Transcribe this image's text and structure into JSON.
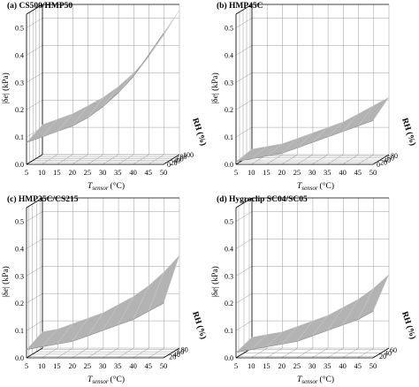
{
  "chart_data": [
    {
      "type": "surface",
      "title": "(a) CS500/HMP50",
      "xlabel": "T",
      "xlabel_sub": "sensor",
      "xlabel_unit": "(°C)",
      "ylabel": "RH (%)",
      "zlabel_prefix": "|δ",
      "zlabel_var": "e",
      "zlabel_suffix": "| (kPa)",
      "x_ticks": [
        "5",
        "10",
        "15",
        "20",
        "25",
        "30",
        "35",
        "40",
        "45",
        "50"
      ],
      "rh_ticks": [
        "0",
        "20",
        "40",
        "60",
        "80",
        "100"
      ],
      "z_ticks": [
        "0.0",
        "0.1",
        "0.2",
        "0.3",
        "0.4",
        "0.5"
      ],
      "xlim": [
        5,
        50
      ],
      "rhlim": [
        0,
        100
      ],
      "zlim": [
        0,
        0.55
      ],
      "surface": {
        "T": [
          5,
          10,
          15,
          20,
          25,
          30,
          35,
          40,
          45,
          50
        ],
        "RH": [
          0,
          100
        ],
        "z": [
          [
            0.08,
            0.1,
            0.12,
            0.14,
            0.17,
            0.21,
            0.26,
            0.32,
            0.4,
            0.48
          ],
          [
            0.11,
            0.13,
            0.15,
            0.18,
            0.21,
            0.25,
            0.3,
            0.36,
            0.44,
            0.53
          ]
        ]
      }
    },
    {
      "type": "surface",
      "title": "(b) HMP45C",
      "xlabel": "T",
      "xlabel_sub": "sensor",
      "xlabel_unit": "(°C)",
      "ylabel": "RH (%)",
      "zlabel_prefix": "|δ",
      "zlabel_var": "e",
      "zlabel_suffix": "| (kPa)",
      "x_ticks": [
        "5",
        "10",
        "15",
        "20",
        "25",
        "30",
        "35",
        "40",
        "45",
        "50"
      ],
      "rh_ticks": [
        "0",
        "20",
        "40",
        "60",
        "80"
      ],
      "z_ticks": [
        "0.0",
        "0.1",
        "0.2",
        "0.3",
        "0.4",
        "0.5"
      ],
      "xlim": [
        5,
        50
      ],
      "rhlim": [
        0,
        90
      ],
      "zlim": [
        0,
        0.55
      ],
      "surface": {
        "T": [
          5,
          10,
          15,
          20,
          25,
          30,
          35,
          40,
          45,
          50
        ],
        "RH": [
          0,
          90
        ],
        "z": [
          [
            0.01,
            0.02,
            0.03,
            0.04,
            0.06,
            0.08,
            0.1,
            0.12,
            0.14,
            0.16
          ],
          [
            0.02,
            0.03,
            0.04,
            0.06,
            0.08,
            0.1,
            0.12,
            0.15,
            0.18,
            0.21
          ]
        ]
      }
    },
    {
      "type": "surface",
      "title": "(c) HMP35C/CS215",
      "xlabel": "T",
      "xlabel_sub": "sensor",
      "xlabel_unit": "(°C)",
      "ylabel": "RH (%)",
      "zlabel_prefix": "|δ",
      "zlabel_var": "e",
      "zlabel_suffix": "| (kPa)",
      "x_ticks": [
        "5",
        "10",
        "15",
        "20",
        "25",
        "30",
        "35",
        "40",
        "45",
        "50"
      ],
      "rh_ticks": [
        "20",
        "40",
        "60",
        "80"
      ],
      "z_ticks": [
        "0.0",
        "0.1",
        "0.2",
        "0.3",
        "0.4",
        "0.5"
      ],
      "xlim": [
        5,
        50
      ],
      "rhlim": [
        10,
        90
      ],
      "zlim": [
        0,
        0.55
      ],
      "surface": {
        "T": [
          5,
          10,
          15,
          20,
          25,
          30,
          35,
          40,
          45,
          50
        ],
        "RH": [
          10,
          90
        ],
        "z": [
          [
            0.03,
            0.04,
            0.05,
            0.06,
            0.08,
            0.1,
            0.12,
            0.14,
            0.17,
            0.2
          ],
          [
            0.06,
            0.07,
            0.09,
            0.11,
            0.13,
            0.16,
            0.19,
            0.23,
            0.28,
            0.34
          ]
        ]
      }
    },
    {
      "type": "surface",
      "title": "(d) Hygroclip SC04/SC05",
      "xlabel": "T",
      "xlabel_sub": "sensor",
      "xlabel_unit": "(°C)",
      "ylabel": "RH (%)",
      "zlabel_prefix": "|δ",
      "zlabel_var": "e",
      "zlabel_suffix": "| (kPa)",
      "x_ticks": [
        "5",
        "10",
        "15",
        "20",
        "25",
        "30",
        "35",
        "40",
        "45",
        "50"
      ],
      "rh_ticks": [
        "20",
        "40",
        "60"
      ],
      "z_ticks": [
        "0.0",
        "0.1",
        "0.2",
        "0.3",
        "0.4",
        "0.5"
      ],
      "xlim": [
        5,
        50
      ],
      "rhlim": [
        10,
        70
      ],
      "zlim": [
        0,
        0.55
      ],
      "surface": {
        "T": [
          5,
          10,
          15,
          20,
          25,
          30,
          35,
          40,
          45,
          50
        ],
        "RH": [
          10,
          70
        ],
        "z": [
          [
            0.02,
            0.03,
            0.04,
            0.05,
            0.06,
            0.08,
            0.1,
            0.12,
            0.14,
            0.17
          ],
          [
            0.04,
            0.05,
            0.06,
            0.08,
            0.1,
            0.12,
            0.15,
            0.18,
            0.22,
            0.27
          ]
        ]
      }
    }
  ]
}
